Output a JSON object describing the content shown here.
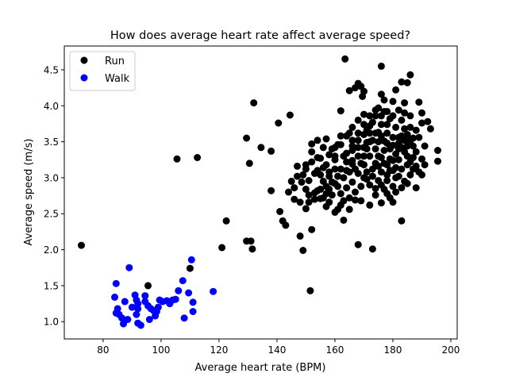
{
  "chart_data": {
    "type": "scatter",
    "title": "How does average heart rate affect average speed?",
    "xlabel": "Average heart rate (BPM)",
    "ylabel": "Average speed (m/s)",
    "xlim": [
      66.6,
      202.2
    ],
    "ylim": [
      0.76,
      4.83
    ],
    "xticks": [
      80,
      100,
      120,
      140,
      160,
      180,
      200
    ],
    "xtick_labels": [
      "80",
      "100",
      "120",
      "140",
      "160",
      "180",
      "200"
    ],
    "yticks": [
      1.0,
      1.5,
      2.0,
      2.5,
      3.0,
      3.5,
      4.0,
      4.5
    ],
    "ytick_labels": [
      "1.0",
      "1.5",
      "2.0",
      "2.5",
      "3.0",
      "3.5",
      "4.0",
      "4.5"
    ],
    "grid": false,
    "legend_position": "top-left",
    "series": [
      {
        "name": "Run",
        "color": "#000000",
        "points": [
          [
            72.5,
            2.06
          ],
          [
            95.5,
            1.5
          ],
          [
            110,
            1.74
          ],
          [
            105.5,
            3.26
          ],
          [
            112.5,
            3.28
          ],
          [
            122.5,
            2.4
          ],
          [
            121,
            2.03
          ],
          [
            129.5,
            2.12
          ],
          [
            131.5,
            2.01
          ],
          [
            131,
            2.12
          ],
          [
            129.5,
            3.55
          ],
          [
            130.5,
            3.2
          ],
          [
            132,
            4.04
          ],
          [
            134.5,
            3.42
          ],
          [
            138,
            3.37
          ],
          [
            138,
            2.82
          ],
          [
            140.5,
            3.76
          ],
          [
            144.5,
            3.87
          ],
          [
            141,
            2.53
          ],
          [
            142,
            2.4
          ],
          [
            143,
            2.34
          ],
          [
            145,
            2.95
          ],
          [
            144,
            2.8
          ],
          [
            147,
            3.16
          ],
          [
            148,
            2.19
          ],
          [
            149,
            1.99
          ],
          [
            151.5,
            1.43
          ],
          [
            152,
            2.28
          ],
          [
            150,
            2.57
          ],
          [
            151,
            2.66
          ],
          [
            146,
            2.7
          ],
          [
            148.5,
            2.94
          ],
          [
            150,
            3.12
          ],
          [
            152,
            3.47
          ],
          [
            154,
            3.52
          ],
          [
            157,
            3.54
          ],
          [
            155,
            3.27
          ],
          [
            157,
            3.18
          ],
          [
            159,
            3.4
          ],
          [
            161,
            3.46
          ],
          [
            162,
            3.93
          ],
          [
            163.5,
            4.65
          ],
          [
            165,
            4.21
          ],
          [
            167,
            4.25
          ],
          [
            168,
            4.31
          ],
          [
            169,
            4.27
          ],
          [
            170,
            4.2
          ],
          [
            169.5,
            4.13
          ],
          [
            171,
            3.66
          ],
          [
            166,
            3.52
          ],
          [
            160,
            3.25
          ],
          [
            158,
            3.02
          ],
          [
            156,
            2.95
          ],
          [
            153,
            2.79
          ],
          [
            154,
            2.82
          ],
          [
            155,
            2.71
          ],
          [
            157,
            2.6
          ],
          [
            158,
            2.84
          ],
          [
            160,
            2.52
          ],
          [
            162,
            2.62
          ],
          [
            161,
            2.56
          ],
          [
            163,
            2.41
          ],
          [
            165,
            2.56
          ],
          [
            167,
            2.69
          ],
          [
            168,
            2.07
          ],
          [
            169,
            2.68
          ],
          [
            172,
            2.62
          ],
          [
            173,
            2.01
          ],
          [
            174,
            2.85
          ],
          [
            176,
            2.65
          ],
          [
            178,
            2.78
          ],
          [
            180,
            2.66
          ],
          [
            183,
            2.4
          ],
          [
            188,
            2.86
          ],
          [
            190,
            3.04
          ],
          [
            195.5,
            3.38
          ],
          [
            195.5,
            3.23
          ],
          [
            193,
            3.68
          ],
          [
            192,
            3.78
          ],
          [
            190,
            3.9
          ],
          [
            189,
            4.05
          ],
          [
            186,
            4.43
          ],
          [
            185,
            4.32
          ],
          [
            183,
            4.33
          ],
          [
            181,
            4.22
          ],
          [
            180,
            4.06
          ],
          [
            176,
            4.55
          ],
          [
            176,
            4.16
          ],
          [
            175,
            3.97
          ],
          [
            177,
            4.08
          ],
          [
            178,
            3.92
          ],
          [
            184,
            4.04
          ],
          [
            186,
            3.86
          ],
          [
            186,
            3.7
          ],
          [
            187,
            3.55
          ],
          [
            185,
            3.6
          ],
          [
            183,
            3.42
          ],
          [
            181,
            3.33
          ],
          [
            179,
            3.4
          ],
          [
            177,
            3.51
          ],
          [
            175,
            3.63
          ],
          [
            173,
            3.77
          ],
          [
            172,
            3.62
          ],
          [
            171,
            3.49
          ],
          [
            170,
            3.42
          ],
          [
            168,
            3.3
          ],
          [
            166,
            3.19
          ],
          [
            165,
            3.08
          ],
          [
            163,
            3.0
          ],
          [
            162,
            3.12
          ],
          [
            164,
            3.22
          ],
          [
            166,
            3.38
          ],
          [
            168,
            3.52
          ],
          [
            170,
            3.6
          ],
          [
            172,
            3.5
          ],
          [
            174,
            3.4
          ],
          [
            176,
            3.28
          ],
          [
            178,
            3.18
          ],
          [
            180,
            3.1
          ],
          [
            182,
            3.02
          ],
          [
            184,
            2.95
          ],
          [
            182,
            3.25
          ],
          [
            180,
            3.45
          ],
          [
            178,
            3.62
          ],
          [
            176,
            3.74
          ],
          [
            174,
            3.86
          ],
          [
            172,
            3.3
          ],
          [
            170,
            3.18
          ],
          [
            168,
            3.06
          ],
          [
            166,
            2.94
          ],
          [
            164,
            2.86
          ],
          [
            162,
            2.78
          ],
          [
            160,
            2.92
          ],
          [
            158,
            3.08
          ],
          [
            156,
            3.14
          ],
          [
            160,
            3.3
          ],
          [
            162,
            3.46
          ],
          [
            164,
            3.34
          ],
          [
            166,
            3.44
          ],
          [
            168,
            3.62
          ],
          [
            170,
            3.74
          ],
          [
            172,
            3.86
          ],
          [
            174,
            3.2
          ],
          [
            176,
            3.08
          ],
          [
            178,
            2.96
          ],
          [
            180,
            2.88
          ],
          [
            182,
            3.56
          ],
          [
            184,
            3.68
          ],
          [
            186,
            3.22
          ],
          [
            188,
            3.36
          ],
          [
            187,
            3.12
          ],
          [
            185,
            3.3
          ],
          [
            183,
            3.8
          ],
          [
            181,
            3.7
          ],
          [
            179,
            3.82
          ],
          [
            177,
            3.92
          ],
          [
            175,
            3.3
          ],
          [
            173,
            3.12
          ],
          [
            171,
            2.98
          ],
          [
            169,
            2.88
          ],
          [
            167,
            2.8
          ],
          [
            165,
            2.72
          ],
          [
            163,
            2.68
          ],
          [
            161,
            2.88
          ],
          [
            159,
            2.76
          ],
          [
            157,
            2.88
          ],
          [
            155,
            3.04
          ],
          [
            153,
            3.06
          ],
          [
            151,
            2.96
          ],
          [
            150,
            2.84
          ],
          [
            149,
            3.04
          ],
          [
            152,
            3.22
          ],
          [
            154,
            3.1
          ],
          [
            156,
            2.72
          ],
          [
            158,
            2.66
          ],
          [
            170,
            3.0
          ],
          [
            172,
            2.9
          ],
          [
            174,
            2.76
          ],
          [
            176,
            2.9
          ],
          [
            178,
            3.04
          ],
          [
            180,
            3.24
          ],
          [
            182,
            3.4
          ],
          [
            184,
            3.52
          ],
          [
            175,
            3.5
          ],
          [
            177,
            3.38
          ],
          [
            179,
            3.26
          ],
          [
            181,
            3.14
          ],
          [
            183,
            3.12
          ],
          [
            185,
            3.44
          ],
          [
            187,
            3.44
          ],
          [
            189,
            3.56
          ],
          [
            191,
            3.44
          ],
          [
            190,
            3.26
          ],
          [
            188,
            3.16
          ],
          [
            186,
            3.04
          ],
          [
            178,
            3.48
          ],
          [
            176,
            3.58
          ],
          [
            174,
            3.62
          ],
          [
            172,
            3.72
          ],
          [
            170,
            3.3
          ],
          [
            168,
            3.42
          ],
          [
            166,
            3.24
          ],
          [
            164,
            3.1
          ],
          [
            163,
            3.3
          ],
          [
            165,
            3.62
          ],
          [
            167,
            3.12
          ],
          [
            169,
            3.2
          ],
          [
            171,
            3.08
          ],
          [
            173,
            3.02
          ],
          [
            175,
            2.96
          ],
          [
            177,
            2.84
          ],
          [
            179,
            2.72
          ],
          [
            181,
            2.8
          ],
          [
            183,
            2.86
          ],
          [
            185,
            2.92
          ],
          [
            178,
            3.74
          ],
          [
            180,
            3.56
          ],
          [
            182,
            3.48
          ],
          [
            184,
            3.36
          ],
          [
            186,
            3.52
          ],
          [
            188,
            3.66
          ],
          [
            190,
            3.76
          ],
          [
            180,
            3.86
          ],
          [
            182,
            3.94
          ],
          [
            184,
            3.9
          ],
          [
            174,
            3.94
          ],
          [
            176,
            3.86
          ],
          [
            170,
            3.88
          ],
          [
            168,
            3.8
          ],
          [
            166,
            3.7
          ],
          [
            164,
            3.58
          ],
          [
            162,
            3.58
          ],
          [
            160,
            3.42
          ],
          [
            158,
            3.32
          ],
          [
            156,
            3.42
          ],
          [
            154,
            3.28
          ],
          [
            152,
            3.36
          ],
          [
            150,
            3.18
          ],
          [
            160,
            3.12
          ],
          [
            161,
            3.02
          ],
          [
            159,
            2.94
          ],
          [
            157,
            2.78
          ],
          [
            155,
            2.84
          ],
          [
            153,
            2.7
          ],
          [
            151,
            2.76
          ],
          [
            148,
            2.66
          ],
          [
            146,
            2.86
          ],
          [
            147,
            3.02
          ],
          [
            171,
            3.4
          ],
          [
            173,
            3.52
          ],
          [
            175,
            3.16
          ],
          [
            177,
            3.2
          ],
          [
            179,
            3.1
          ],
          [
            181,
            3.0
          ],
          [
            183,
            3.58
          ],
          [
            185,
            3.18
          ],
          [
            187,
            3.28
          ],
          [
            189,
            3.08
          ],
          [
            191,
            3.18
          ]
        ]
      },
      {
        "name": "Walk",
        "color": "#0000ff",
        "points": [
          [
            84.5,
            1.53
          ],
          [
            84,
            1.34
          ],
          [
            85,
            1.18
          ],
          [
            84.5,
            1.12
          ],
          [
            85.5,
            1.1
          ],
          [
            86.5,
            1.05
          ],
          [
            87.5,
            1.02
          ],
          [
            87,
            0.97
          ],
          [
            88.5,
            1.03
          ],
          [
            87.5,
            1.28
          ],
          [
            89,
            1.75
          ],
          [
            91,
            1.37
          ],
          [
            91.5,
            1.3
          ],
          [
            92,
            1.25
          ],
          [
            92,
            1.18
          ],
          [
            91.5,
            1.1
          ],
          [
            92,
            0.98
          ],
          [
            93,
            0.95
          ],
          [
            94.5,
            1.36
          ],
          [
            95.5,
            1.22
          ],
          [
            96,
            1.03
          ],
          [
            96.5,
            1.18
          ],
          [
            97.5,
            1.15
          ],
          [
            98,
            1.08
          ],
          [
            98.5,
            1.14
          ],
          [
            99,
            1.2
          ],
          [
            99.5,
            1.3
          ],
          [
            100.5,
            1.28
          ],
          [
            102,
            1.29
          ],
          [
            103,
            1.25
          ],
          [
            104,
            1.3
          ],
          [
            105,
            1.31
          ],
          [
            106,
            1.43
          ],
          [
            107.5,
            1.57
          ],
          [
            109.5,
            1.4
          ],
          [
            108,
            1.05
          ],
          [
            110.5,
            1.86
          ],
          [
            111,
            1.27
          ],
          [
            111,
            1.14
          ],
          [
            118,
            1.42
          ],
          [
            94.5,
            1.28
          ],
          [
            90,
            1.2
          ]
        ]
      }
    ]
  }
}
